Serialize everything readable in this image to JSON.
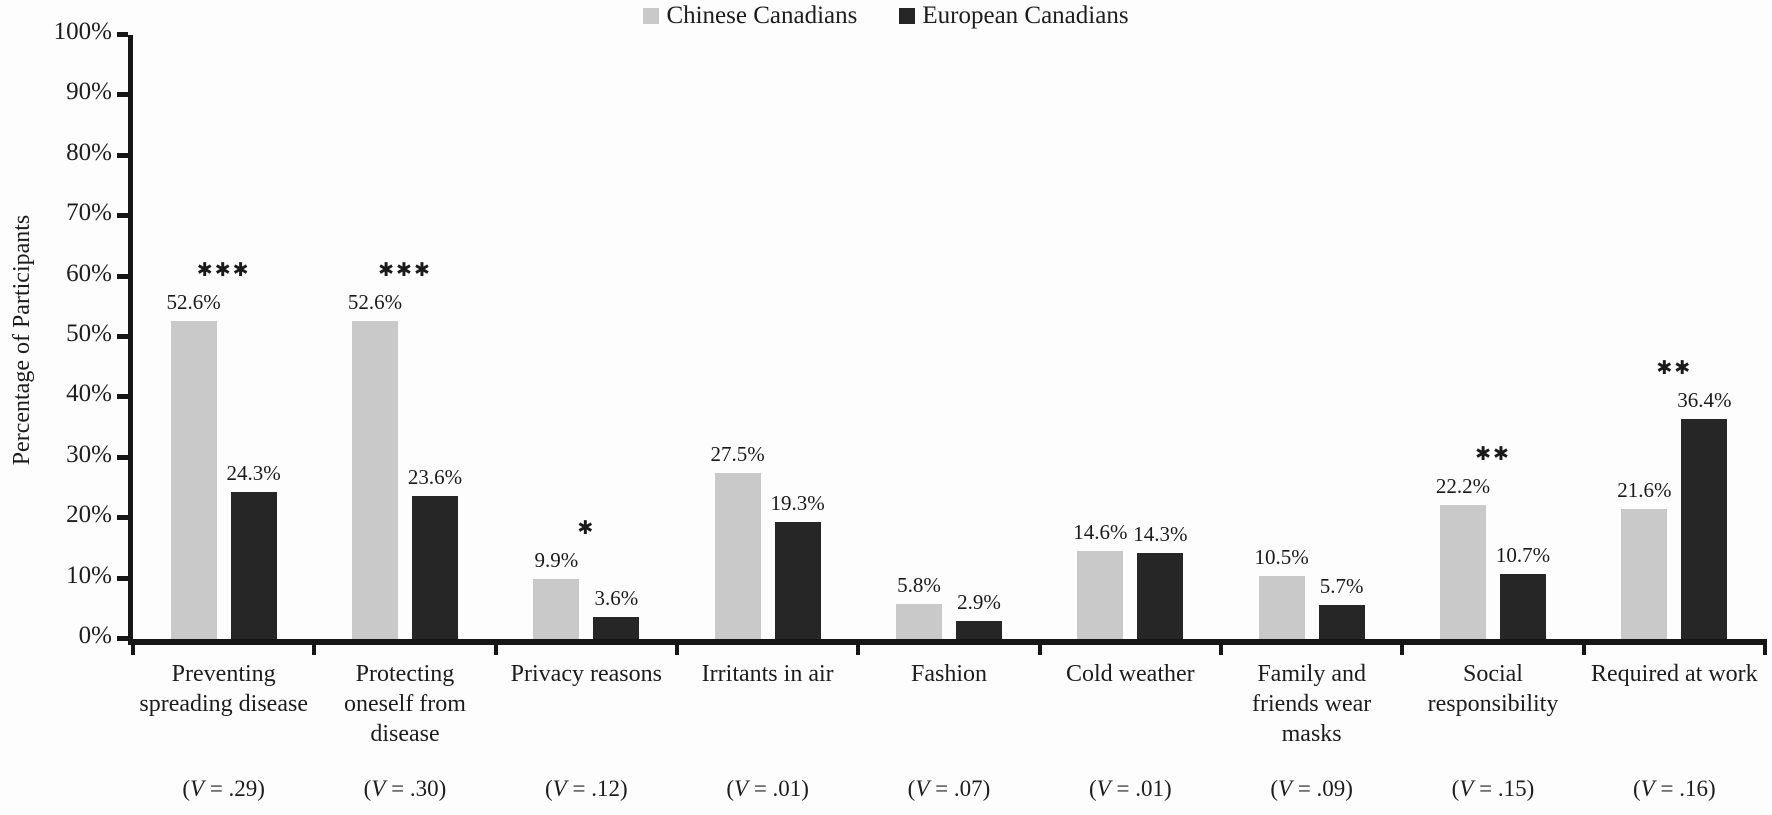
{
  "figure": {
    "background": "#fdfdfd",
    "axis_color": "#161616",
    "text_color": "#1c1c1c"
  },
  "legend": {
    "items": [
      {
        "label": "Chinese Canadians",
        "color": "#c9c9c9"
      },
      {
        "label": "European Canadians",
        "color": "#262626"
      }
    ]
  },
  "y_axis": {
    "title": "Percentage of Participants",
    "tick_labels": [
      "0%",
      "10%",
      "20%",
      "30%",
      "40%",
      "50%",
      "60%",
      "70%",
      "80%",
      "90%",
      "100%"
    ]
  },
  "chart_data": {
    "type": "bar",
    "title": "",
    "xlabel": "",
    "ylabel": "Percentage of Participants",
    "ylim": [
      0,
      100
    ],
    "ytick_step": 10,
    "grid": false,
    "legend_position": "top-center",
    "categories": [
      "Preventing spreading disease",
      "Protecting oneself from disease",
      "Privacy reasons",
      "Irritants in air",
      "Fashion",
      "Cold weather",
      "Family and friends wear masks",
      "Social responsibility",
      "Required at work"
    ],
    "category_lines": [
      [
        "Preventing",
        "spreading disease"
      ],
      [
        "Protecting",
        "oneself from",
        "disease"
      ],
      [
        "Privacy reasons"
      ],
      [
        "Irritants in air"
      ],
      [
        "Fashion"
      ],
      [
        "Cold weather"
      ],
      [
        "Family and",
        "friends wear",
        "masks"
      ],
      [
        "Social",
        "responsibility"
      ],
      [
        "Required at work"
      ]
    ],
    "series": [
      {
        "name": "Chinese Canadians",
        "color": "#c9c9c9",
        "values": [
          52.6,
          52.6,
          9.9,
          27.5,
          5.8,
          14.6,
          10.5,
          22.2,
          21.6
        ],
        "labels": [
          "52.6%",
          "52.6%",
          "9.9%",
          "27.5%",
          "5.8%",
          "14.6%",
          "10.5%",
          "22.2%",
          "21.6%"
        ]
      },
      {
        "name": "European Canadians",
        "color": "#262626",
        "values": [
          24.3,
          23.6,
          3.6,
          19.3,
          2.9,
          14.3,
          5.7,
          10.7,
          36.4
        ],
        "labels": [
          "24.3%",
          "23.6%",
          "3.6%",
          "19.3%",
          "2.9%",
          "14.3%",
          "5.7%",
          "10.7%",
          "36.4%"
        ]
      }
    ],
    "significance": [
      "***",
      "***",
      "*",
      "",
      "",
      "",
      "",
      "**",
      "**"
    ],
    "effect_size_labels": [
      "(V = .29)",
      "(V = .30)",
      "(V = .12)",
      "(V = .01)",
      "(V = .07)",
      "(V = .01)",
      "(V = .09)",
      "(V = .15)",
      "(V = .16)"
    ]
  }
}
